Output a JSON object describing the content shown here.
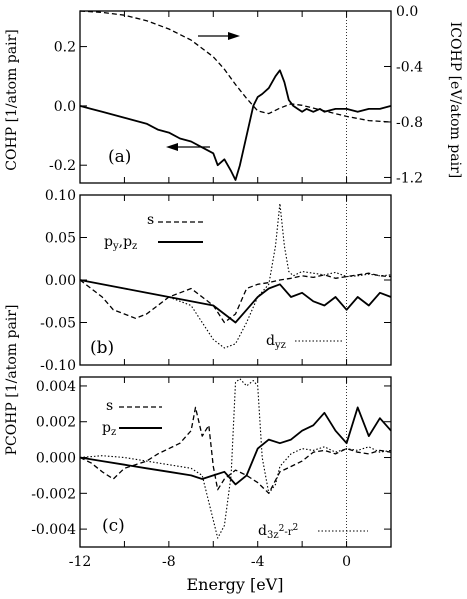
{
  "colors": {
    "line": "#000000",
    "background": "#ffffff"
  },
  "chart_data": [
    {
      "panel": "a",
      "type": "line",
      "label": "(a)",
      "ylabel_left": "COHP [1/atom pair]",
      "ylabel_right": "ICOHP [eV/atom pair]",
      "xlim": [
        -12,
        2
      ],
      "ylim": [
        -0.26,
        0.32
      ],
      "ylim_right": [
        -1.24,
        0.0
      ],
      "yticks": [
        {
          "v": 0.2,
          "t": "0.2"
        },
        {
          "v": 0.0,
          "t": "0.0"
        },
        {
          "v": -0.2,
          "t": "-0.2"
        }
      ],
      "yticks_right": [
        {
          "v": 0.0,
          "t": "0.0"
        },
        {
          "v": -0.4,
          "t": "-0.4"
        },
        {
          "v": -0.8,
          "t": "-0.8"
        },
        {
          "v": -1.2,
          "t": "-1.2"
        }
      ],
      "fermi_x": 0,
      "series": [
        {
          "style": "solid",
          "axis": "left",
          "x": [
            -12,
            -11.5,
            -11,
            -10.5,
            -10,
            -9.5,
            -9,
            -8.5,
            -8,
            -7.5,
            -7,
            -6.5,
            -6,
            -5.8,
            -5.5,
            -5.2,
            -5,
            -4.8,
            -4.5,
            -4.2,
            -4,
            -3.8,
            -3.5,
            -3.2,
            -3,
            -2.8,
            -2.6,
            -2.4,
            -2.2,
            -2,
            -1.8,
            -1.5,
            -1.2,
            -1,
            -0.5,
            0,
            0.5,
            1,
            1.5,
            2
          ],
          "y": [
            0.0,
            -0.01,
            -0.02,
            -0.03,
            -0.04,
            -0.05,
            -0.06,
            -0.08,
            -0.09,
            -0.11,
            -0.12,
            -0.14,
            -0.16,
            -0.2,
            -0.18,
            -0.22,
            -0.25,
            -0.2,
            -0.1,
            0.0,
            0.03,
            0.04,
            0.06,
            0.1,
            0.12,
            0.08,
            0.02,
            0.0,
            -0.01,
            -0.02,
            -0.01,
            -0.02,
            -0.01,
            -0.02,
            -0.01,
            -0.01,
            -0.02,
            -0.01,
            -0.01,
            0.0
          ]
        },
        {
          "style": "dashed",
          "axis": "right",
          "x": [
            -12,
            -11,
            -10,
            -9,
            -8,
            -7,
            -6,
            -5.5,
            -5,
            -4.5,
            -4,
            -3.5,
            -3,
            -2.5,
            -2,
            -1,
            0,
            1,
            2
          ],
          "y": [
            0.0,
            -0.01,
            -0.03,
            -0.07,
            -0.13,
            -0.21,
            -0.33,
            -0.42,
            -0.53,
            -0.63,
            -0.72,
            -0.74,
            -0.7,
            -0.67,
            -0.68,
            -0.72,
            -0.76,
            -0.79,
            -0.8
          ]
        }
      ]
    },
    {
      "panel": "b",
      "type": "line",
      "label": "(b)",
      "xlim": [
        -12,
        2
      ],
      "ylim": [
        -0.1,
        0.1
      ],
      "yticks": [
        {
          "v": 0.1,
          "t": "0.10"
        },
        {
          "v": 0.05,
          "t": "0.05"
        },
        {
          "v": 0.0,
          "t": "0.00"
        },
        {
          "v": -0.05,
          "t": "-0.05"
        },
        {
          "v": -0.1,
          "t": "-0.10"
        }
      ],
      "fermi_x": 0,
      "legend": [
        "s",
        "p_y,p_z"
      ],
      "extra_label": "d_yz",
      "series": [
        {
          "style": "dashed",
          "x": [
            -12,
            -11.5,
            -11,
            -10.5,
            -10,
            -9.5,
            -9,
            -8.5,
            -8,
            -7.5,
            -7,
            -6.5,
            -6,
            -5.5,
            -5,
            -4.5,
            -4,
            -3.5,
            -3,
            -2.5,
            -2,
            -1.5,
            -1,
            -0.5,
            0,
            0.5,
            1,
            1.5,
            2
          ],
          "y": [
            0.0,
            -0.01,
            -0.02,
            -0.035,
            -0.04,
            -0.045,
            -0.04,
            -0.03,
            -0.02,
            -0.015,
            -0.01,
            -0.02,
            -0.03,
            -0.05,
            -0.04,
            -0.01,
            -0.005,
            -0.003,
            0.0,
            0.002,
            0.005,
            0.003,
            0.006,
            0.002,
            0.004,
            0.006,
            0.008,
            0.005,
            0.004
          ]
        },
        {
          "style": "solid",
          "x": [
            -12,
            -11,
            -10,
            -9,
            -8,
            -7,
            -6,
            -5.5,
            -5,
            -4.5,
            -4,
            -3.5,
            -3,
            -2.5,
            -2,
            -1.5,
            -1,
            -0.5,
            0,
            0.5,
            1,
            1.5,
            2
          ],
          "y": [
            0.0,
            -0.005,
            -0.01,
            -0.015,
            -0.02,
            -0.025,
            -0.03,
            -0.04,
            -0.05,
            -0.035,
            -0.02,
            -0.01,
            -0.005,
            -0.02,
            -0.015,
            -0.025,
            -0.03,
            -0.02,
            -0.035,
            -0.02,
            -0.03,
            -0.015,
            -0.02
          ]
        },
        {
          "style": "dotted",
          "x": [
            -12,
            -11,
            -10,
            -9,
            -8,
            -7,
            -6.5,
            -6,
            -5.5,
            -5,
            -4.5,
            -4,
            -3.5,
            -3.2,
            -3,
            -2.8,
            -2.6,
            -2.4,
            -2,
            -1.5,
            -1,
            -0.5,
            0,
            0.5,
            1,
            1.5,
            2
          ],
          "y": [
            0.0,
            -0.005,
            -0.01,
            -0.015,
            -0.02,
            -0.03,
            -0.05,
            -0.07,
            -0.08,
            -0.075,
            -0.05,
            -0.02,
            -0.005,
            0.04,
            0.09,
            0.04,
            0.01,
            0.005,
            0.01,
            0.008,
            0.006,
            0.009,
            0.004,
            0.005,
            0.007,
            0.005,
            0.006
          ]
        }
      ]
    },
    {
      "panel": "c",
      "type": "line",
      "label": "(c)",
      "ylabel_left": "PCOHP [1/atom pair]",
      "xlabel": "Energy [eV]",
      "xlim": [
        -12,
        2
      ],
      "ylim": [
        -0.005,
        0.0045
      ],
      "yticks": [
        {
          "v": 0.004,
          "t": "0.004"
        },
        {
          "v": 0.002,
          "t": "0.002"
        },
        {
          "v": 0.0,
          "t": "0.000"
        },
        {
          "v": -0.002,
          "t": "-0.002"
        },
        {
          "v": -0.004,
          "t": "-0.004"
        }
      ],
      "xticks": [
        {
          "v": -12,
          "t": "-12"
        },
        {
          "v": -8,
          "t": "-8"
        },
        {
          "v": -4,
          "t": "-4"
        },
        {
          "v": 0,
          "t": "0"
        }
      ],
      "fermi_x": 0,
      "legend": [
        "s",
        "p_z"
      ],
      "extra_label": "d_3z^2-r^2",
      "series": [
        {
          "style": "dashed",
          "x": [
            -12,
            -11.5,
            -11,
            -10.5,
            -10,
            -9.5,
            -9,
            -8.5,
            -8,
            -7.5,
            -7,
            -6.8,
            -6.5,
            -6.2,
            -6,
            -5.8,
            -5.5,
            -5,
            -4.5,
            -4,
            -3.5,
            -3,
            -2.5,
            -2,
            -1.5,
            -1,
            -0.5,
            0,
            0.5,
            1,
            1.5,
            2
          ],
          "y": [
            0.0,
            -0.0003,
            -0.0008,
            -0.0012,
            -0.0006,
            -0.0004,
            -0.0002,
            0.0002,
            0.0005,
            0.0008,
            0.0015,
            0.0028,
            0.0012,
            0.0018,
            -0.0005,
            -0.0018,
            -0.0012,
            -0.0007,
            -0.001,
            -0.0014,
            -0.002,
            -0.0008,
            -0.0005,
            -0.0002,
            0.0003,
            0.0004,
            0.0002,
            0.0005,
            0.0003,
            0.0002,
            0.0004,
            0.0003
          ]
        },
        {
          "style": "solid",
          "x": [
            -12,
            -11,
            -10,
            -9,
            -8,
            -7,
            -6.5,
            -6,
            -5.5,
            -5,
            -4.5,
            -4,
            -3.5,
            -3,
            -2.5,
            -2,
            -1.5,
            -1,
            -0.5,
            0,
            0.5,
            1,
            1.5,
            2
          ],
          "y": [
            0.0,
            -0.0002,
            -0.0004,
            -0.0006,
            -0.0008,
            -0.001,
            -0.0012,
            -0.001,
            -0.0008,
            -0.0015,
            -0.001,
            0.0005,
            0.001,
            0.0008,
            0.001,
            0.0015,
            0.0018,
            0.0025,
            0.0015,
            0.0008,
            0.0028,
            0.0012,
            0.0022,
            0.0015
          ]
        },
        {
          "style": "dotted",
          "x": [
            -12,
            -11,
            -10,
            -9,
            -8,
            -7,
            -6.5,
            -6,
            -5.8,
            -5.5,
            -5.2,
            -5,
            -4.8,
            -4.5,
            -4.2,
            -4,
            -3.8,
            -3.5,
            -3.2,
            -3,
            -2.5,
            -2,
            -1.5,
            -1,
            -0.5,
            0,
            0.5,
            1,
            1.5,
            2
          ],
          "y": [
            0.0,
            0.0001,
            0.0,
            -0.0002,
            -0.0004,
            -0.0006,
            -0.001,
            -0.0035,
            -0.0045,
            -0.0038,
            -0.001,
            0.0042,
            0.0044,
            0.004,
            0.0043,
            0.004,
            0.0,
            -0.002,
            -0.0015,
            -0.0005,
            0.0002,
            0.0005,
            0.0004,
            0.0006,
            0.0003,
            0.0005,
            0.0004,
            0.0006,
            0.0003,
            0.0004
          ]
        }
      ]
    }
  ]
}
